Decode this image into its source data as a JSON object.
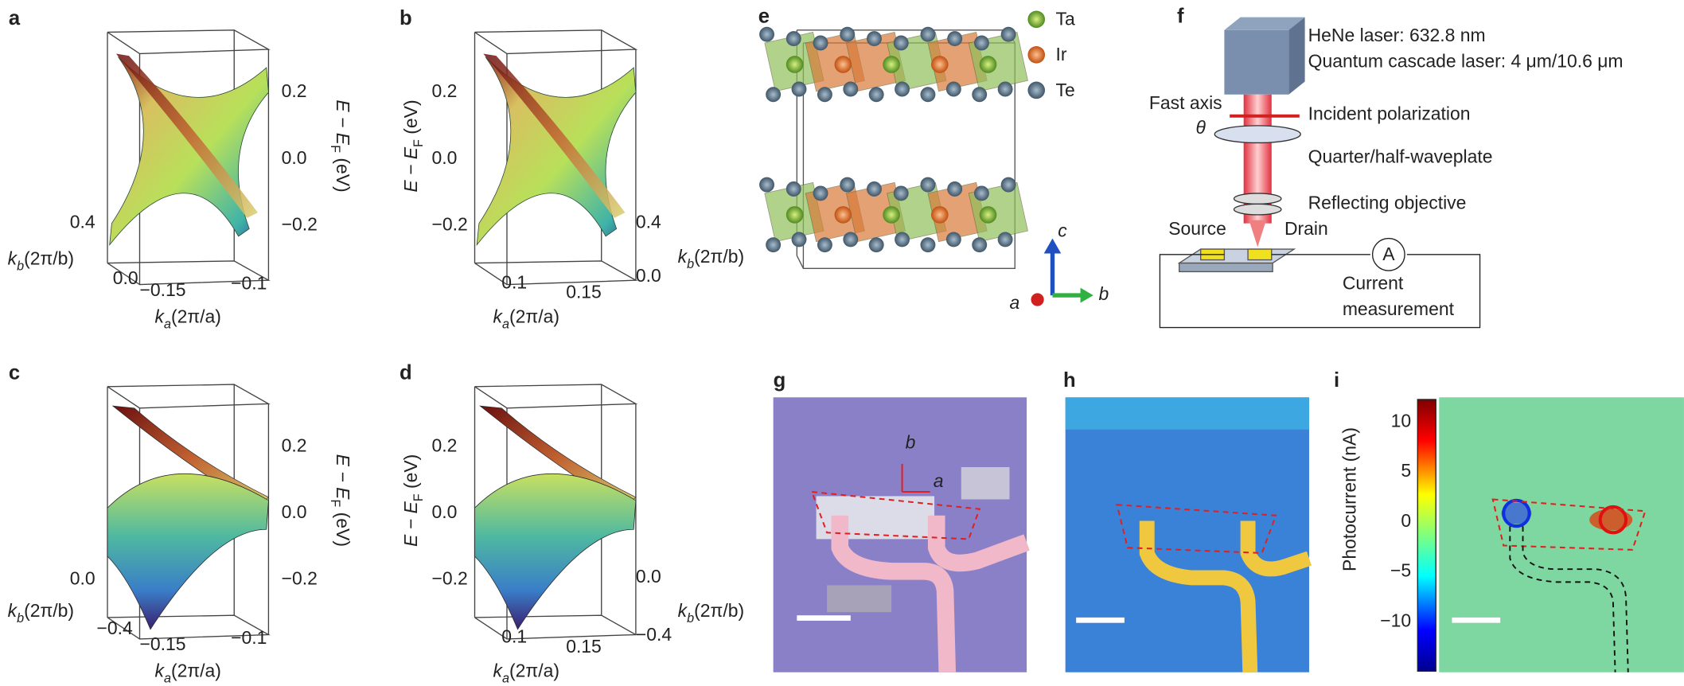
{
  "panels": {
    "a": {
      "label": "a",
      "z_ticks": [
        "0.2",
        "0.0",
        "−0.2"
      ],
      "z_label": [
        "E − E",
        "F",
        " (eV)"
      ],
      "kb_ticks": [
        "0.4",
        "0.0"
      ],
      "kb_label": [
        "k",
        "b",
        "(2π/b)"
      ],
      "ka_ticks": [
        "−0.15",
        "−0.1"
      ],
      "ka_label": [
        "k",
        "a",
        "(2π/a)"
      ]
    },
    "b": {
      "label": "b",
      "z_ticks": [
        "0.2",
        "0.0",
        "−0.2"
      ],
      "z_label": [
        "E − E",
        "F",
        " (eV)"
      ],
      "ka_ticks": [
        "0.1",
        "0.15"
      ],
      "ka_label": [
        "k",
        "a",
        "(2π/a)"
      ],
      "kb_ticks": [
        "0.4",
        "0.0"
      ],
      "kb_label": [
        "k",
        "b",
        "(2π/b)"
      ]
    },
    "c": {
      "label": "c",
      "z_ticks": [
        "0.2",
        "0.0",
        "−0.2"
      ],
      "z_label": [
        "E − E",
        "F",
        " (eV)"
      ],
      "kb_ticks": [
        "0.0",
        "−0.4"
      ],
      "kb_label": [
        "k",
        "b",
        "(2π/b)"
      ],
      "ka_ticks": [
        "−0.15",
        "−0.1"
      ],
      "ka_label": [
        "k",
        "a",
        "(2π/a)"
      ]
    },
    "d": {
      "label": "d",
      "z_ticks": [
        "0.2",
        "0.0",
        "−0.2"
      ],
      "z_label": [
        "E − E",
        "F",
        " (eV)"
      ],
      "ka_ticks": [
        "0.1",
        "0.15"
      ],
      "ka_label": [
        "k",
        "a",
        "(2π/a)"
      ],
      "kb_ticks": [
        "0.0",
        "−0.4"
      ],
      "kb_label": [
        "k",
        "b",
        "(2π/b)"
      ]
    },
    "e": {
      "label": "e",
      "legend": [
        "Ta",
        "Ir",
        "Te"
      ],
      "axes": [
        "c",
        "a",
        "b"
      ]
    },
    "f": {
      "label": "f",
      "laser_hene": "HeNe laser: 632.8 nm",
      "laser_qc": "Quantum cascade laser: 4 μm/10.6 μm",
      "fast_axis": "Fast axis",
      "theta": "θ",
      "incident": "Incident polarization",
      "waveplate": "Quarter/half-waveplate",
      "objective": "Reflecting objective",
      "source": "Source",
      "drain": "Drain",
      "ammeter": "A",
      "measurement": [
        "Current",
        "measurement"
      ]
    },
    "g": {
      "label": "g",
      "axes": [
        "b",
        "a"
      ]
    },
    "h": {
      "label": "h"
    },
    "i": {
      "label": "i",
      "colorbar_ticks": [
        "10",
        "5",
        "0",
        "−5",
        "−10"
      ],
      "colorbar_label": "Photocurrent (nA)"
    }
  }
}
